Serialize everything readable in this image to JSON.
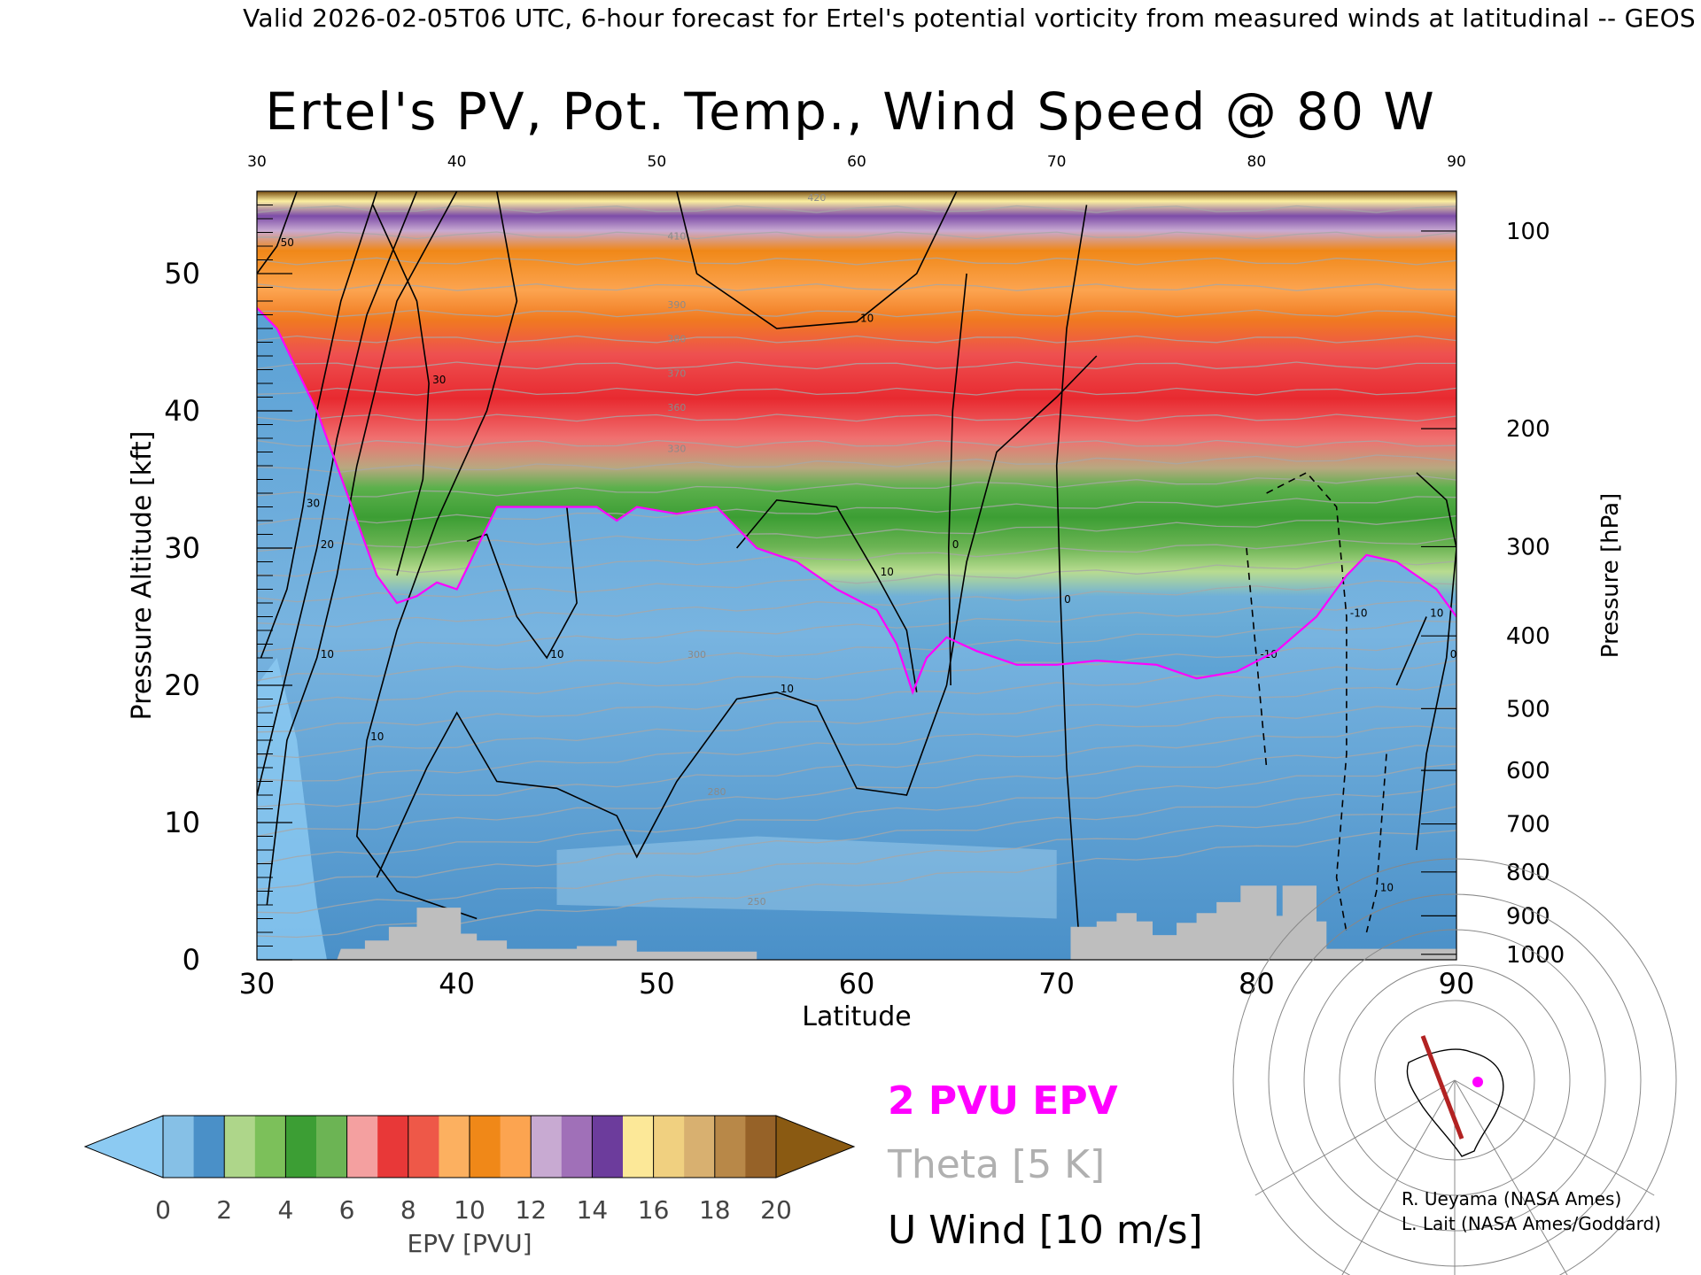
{
  "header": {
    "valid_line": "Valid 2026-02-05T06 UTC, 6-hour forecast for Ertel's potential vorticity from measured winds at latitudinal -- GEOS"
  },
  "key": {
    "pvu": "2 PVU EPV",
    "theta": "Theta [5 K]",
    "wind": "U Wind [10 m/s]"
  },
  "credits": [
    "R. Ueyama (NASA Ames)",
    "L. Lait (NASA Ames/Goddard)"
  ],
  "colors": {
    "pv_contour": "#ff00ff",
    "theta_contour": "#a8a8a8",
    "wind_contour": "#000000",
    "terrain": "#bebebe",
    "section_line": "#b22222"
  },
  "chart_data": {
    "type": "heatmap",
    "title": "Ertel's PV, Pot. Temp., Wind Speed @ 80 W",
    "xlabel": "Latitude",
    "ylabel": "Pressure Altitude [kft]",
    "y2label": "Pressure [hPa]",
    "xlim": [
      30,
      90
    ],
    "ylim": [
      0,
      56
    ],
    "x_ticks": [
      30,
      40,
      50,
      60,
      70,
      80,
      90
    ],
    "y_ticks": [
      0,
      10,
      20,
      30,
      40,
      50
    ],
    "pressure_ticks": [
      {
        "label": "100",
        "kft": 53.1
      },
      {
        "label": "200",
        "kft": 38.7
      },
      {
        "label": "300",
        "kft": 30.1
      },
      {
        "label": "400",
        "kft": 23.6
      },
      {
        "label": "500",
        "kft": 18.3
      },
      {
        "label": "600",
        "kft": 13.8
      },
      {
        "label": "700",
        "kft": 9.9
      },
      {
        "label": "800",
        "kft": 6.4
      },
      {
        "label": "900",
        "kft": 3.2
      },
      {
        "label": "1000",
        "kft": 0.4
      }
    ],
    "colorbar": {
      "label": "EPV [PVU]",
      "ticks": [
        0,
        2,
        4,
        6,
        8,
        10,
        12,
        14,
        16,
        18,
        20
      ],
      "under_color": "#8ccaf2",
      "over_color": "#8a5a12",
      "colors": [
        "#86c0e6",
        "#4a90c8",
        "#aed68a",
        "#7cc05a",
        "#3c9e34",
        "#6cb454",
        "#f4a0a0",
        "#e83838",
        "#ee5848",
        "#fcb060",
        "#f08818",
        "#fca450",
        "#c8aad2",
        "#a070b8",
        "#6c3c9c",
        "#fce898",
        "#f0d080",
        "#d8b070",
        "#b88848",
        "#966228"
      ]
    },
    "tropopause_2pvu": [
      [
        30,
        47.5
      ],
      [
        31,
        46
      ],
      [
        32,
        43
      ],
      [
        33,
        40
      ],
      [
        34,
        36
      ],
      [
        35,
        32
      ],
      [
        36,
        28
      ],
      [
        37,
        26
      ],
      [
        38,
        26.5
      ],
      [
        39,
        27.5
      ],
      [
        40,
        27
      ],
      [
        41,
        30
      ],
      [
        42,
        33
      ],
      [
        43,
        33
      ],
      [
        45,
        33
      ],
      [
        47,
        33
      ],
      [
        48,
        32
      ],
      [
        49,
        33
      ],
      [
        51,
        32.5
      ],
      [
        53,
        33
      ],
      [
        55,
        30
      ],
      [
        57,
        29
      ],
      [
        59,
        27
      ],
      [
        61,
        25.5
      ],
      [
        62,
        23
      ],
      [
        62.8,
        19.5
      ],
      [
        63.5,
        22
      ],
      [
        64.5,
        23.5
      ],
      [
        66,
        22.5
      ],
      [
        68,
        21.5
      ],
      [
        70,
        21.5
      ],
      [
        72,
        21.8
      ],
      [
        75,
        21.5
      ],
      [
        77,
        20.5
      ],
      [
        79,
        21
      ],
      [
        81,
        22.5
      ],
      [
        83,
        25
      ],
      [
        84.5,
        28
      ],
      [
        85.5,
        29.5
      ],
      [
        87,
        29
      ],
      [
        89,
        27
      ],
      [
        90,
        25
      ]
    ],
    "theta_labels": [
      {
        "label": "250",
        "lat": 55,
        "kft": 4
      },
      {
        "label": "280",
        "lat": 53,
        "kft": 12
      },
      {
        "label": "300",
        "lat": 52,
        "kft": 22
      },
      {
        "label": "330",
        "lat": 51,
        "kft": 37
      },
      {
        "label": "360",
        "lat": 51,
        "kft": 40
      },
      {
        "label": "370",
        "lat": 51,
        "kft": 42.5
      },
      {
        "label": "380",
        "lat": 51,
        "kft": 45
      },
      {
        "label": "390",
        "lat": 51,
        "kft": 47.5
      },
      {
        "label": "410",
        "lat": 51,
        "kft": 52.5
      },
      {
        "label": "420",
        "lat": 58,
        "kft": 55.3
      }
    ],
    "wind_contours": [
      {
        "label": "10",
        "points": [
          [
            40,
            56
          ],
          [
            37,
            48
          ],
          [
            35,
            36
          ],
          [
            34,
            28
          ],
          [
            33,
            22
          ],
          [
            31.5,
            16
          ],
          [
            31,
            10
          ],
          [
            30.5,
            4
          ]
        ]
      },
      {
        "label": "20",
        "points": [
          [
            38,
            56
          ],
          [
            35.5,
            47
          ],
          [
            34,
            38
          ],
          [
            33,
            30
          ],
          [
            32,
            24
          ],
          [
            31,
            18
          ],
          [
            30,
            12
          ]
        ]
      },
      {
        "label": "30",
        "points": [
          [
            36,
            56
          ],
          [
            34.2,
            48
          ],
          [
            33,
            40
          ],
          [
            32.3,
            33
          ],
          [
            31.5,
            27
          ],
          [
            30.2,
            22
          ]
        ]
      },
      {
        "label": "50",
        "points": [
          [
            32,
            56
          ],
          [
            31,
            52
          ],
          [
            30,
            50
          ]
        ]
      },
      {
        "label": "30",
        "points": [
          [
            35.8,
            55
          ],
          [
            38,
            48
          ],
          [
            38.6,
            42
          ],
          [
            38.3,
            35
          ],
          [
            37,
            28
          ]
        ]
      },
      {
        "label": "10",
        "points": [
          [
            42,
            56
          ],
          [
            43,
            48
          ],
          [
            41.5,
            40
          ],
          [
            39,
            32
          ],
          [
            37,
            24
          ],
          [
            35.5,
            16
          ],
          [
            35,
            9
          ],
          [
            37,
            5
          ],
          [
            39,
            4
          ],
          [
            41,
            3
          ]
        ]
      },
      {
        "label": "10",
        "points": [
          [
            40.5,
            30.5
          ],
          [
            41.5,
            31
          ],
          [
            43,
            25
          ],
          [
            44.5,
            22
          ],
          [
            46,
            26
          ],
          [
            45.5,
            33
          ]
        ]
      },
      {
        "label": "10",
        "points": [
          [
            36,
            6
          ],
          [
            38.5,
            14
          ],
          [
            40,
            18
          ],
          [
            42,
            13
          ],
          [
            45,
            12.5
          ],
          [
            48,
            10.5
          ],
          [
            49,
            7.5
          ],
          [
            51,
            13
          ],
          [
            54,
            19
          ],
          [
            56,
            19.5
          ],
          [
            58,
            18.5
          ],
          [
            60,
            12.5
          ],
          [
            62.5,
            12
          ],
          [
            64.5,
            20
          ],
          [
            65.5,
            29
          ],
          [
            67,
            37
          ],
          [
            70,
            41
          ],
          [
            72,
            44
          ]
        ]
      },
      {
        "label": "10",
        "points": [
          [
            51,
            56
          ],
          [
            52,
            50
          ],
          [
            56,
            46
          ],
          [
            60,
            46.5
          ],
          [
            63,
            50
          ],
          [
            65,
            56
          ]
        ]
      },
      {
        "label": "10",
        "points": [
          [
            54,
            30
          ],
          [
            56,
            33.5
          ],
          [
            59,
            33
          ],
          [
            61,
            28
          ],
          [
            62.5,
            24
          ],
          [
            63,
            19.5
          ]
        ]
      },
      {
        "label": "0",
        "points": [
          [
            71.5,
            55
          ],
          [
            70.5,
            46
          ],
          [
            70,
            36
          ],
          [
            70.2,
            26
          ],
          [
            70.5,
            14
          ],
          [
            71,
            4
          ],
          [
            71.2,
            0
          ]
        ]
      },
      {
        "label": "0",
        "points": [
          [
            65.5,
            50
          ],
          [
            64.8,
            40
          ],
          [
            64.6,
            30
          ],
          [
            64.7,
            20
          ]
        ]
      },
      {
        "label": "-10",
        "points": [
          [
            80.5,
            34
          ],
          [
            82.5,
            35.5
          ],
          [
            84,
            33
          ],
          [
            84.5,
            25
          ],
          [
            84.5,
            15
          ],
          [
            84,
            6
          ],
          [
            84.5,
            2
          ]
        ],
        "dashed": true
      },
      {
        "label": "-10",
        "points": [
          [
            79.5,
            30
          ],
          [
            80,
            22
          ],
          [
            80.5,
            14
          ]
        ],
        "dashed": true
      },
      {
        "label": "10",
        "points": [
          [
            86.5,
            15
          ],
          [
            86,
            5
          ],
          [
            85.5,
            2
          ]
        ],
        "dashed": true
      },
      {
        "label": "0",
        "points": [
          [
            88,
            35.5
          ],
          [
            89.5,
            33.5
          ],
          [
            90,
            30
          ],
          [
            89.5,
            22
          ],
          [
            88.5,
            15
          ],
          [
            88,
            8
          ]
        ]
      },
      {
        "label": "10",
        "points": [
          [
            87,
            20
          ],
          [
            88.5,
            25
          ]
        ]
      }
    ],
    "terrain": [
      [
        34,
        0
      ],
      [
        34.2,
        0.8
      ],
      [
        35.4,
        0.8
      ],
      [
        35.4,
        1.4
      ],
      [
        36.6,
        1.4
      ],
      [
        36.6,
        2.4
      ],
      [
        38,
        2.4
      ],
      [
        38,
        3.8
      ],
      [
        40.2,
        3.8
      ],
      [
        40.2,
        1.9
      ],
      [
        41,
        1.9
      ],
      [
        41,
        1.4
      ],
      [
        42.5,
        1.4
      ],
      [
        42.5,
        0.8
      ],
      [
        46,
        0.8
      ],
      [
        46,
        1.0
      ],
      [
        48,
        1.0
      ],
      [
        48,
        1.4
      ],
      [
        49,
        1.4
      ],
      [
        49,
        0.6
      ],
      [
        55,
        0.6
      ],
      [
        55,
        0
      ],
      [
        70.7,
        0
      ],
      [
        70.7,
        2.4
      ],
      [
        72,
        2.4
      ],
      [
        72,
        2.8
      ],
      [
        73,
        2.8
      ],
      [
        73,
        3.4
      ],
      [
        74,
        3.4
      ],
      [
        74,
        2.8
      ],
      [
        74.8,
        2.8
      ],
      [
        74.8,
        1.8
      ],
      [
        76,
        1.8
      ],
      [
        76,
        2.7
      ],
      [
        77,
        2.7
      ],
      [
        77,
        3.4
      ],
      [
        78,
        3.4
      ],
      [
        78,
        4.2
      ],
      [
        79.2,
        4.2
      ],
      [
        79.2,
        5.4
      ],
      [
        81,
        5.4
      ],
      [
        81,
        3.2
      ],
      [
        81.3,
        3.2
      ],
      [
        81.3,
        5.4
      ],
      [
        83,
        5.4
      ],
      [
        83,
        2.8
      ],
      [
        83.5,
        2.8
      ],
      [
        83.5,
        0.8
      ],
      [
        90,
        0.8
      ],
      [
        90,
        0
      ]
    ]
  }
}
